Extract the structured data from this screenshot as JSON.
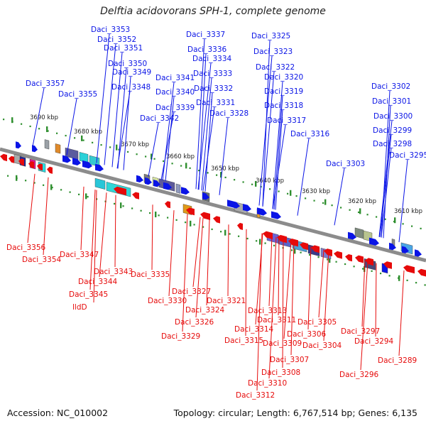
{
  "title": "Delftia acidovorans SPH-1, complete genome",
  "footer": {
    "accession": "Accession: NC_010002",
    "topology": "Topology: circular; Length: 6,767,514 bp; Genes: 6,135"
  },
  "colors": {
    "forward": "#0a14e6",
    "reverse": "#e60a0a",
    "backbone": "#8c8c8c",
    "tick": "#2f8f2f"
  },
  "scale_labels": [
    "3690 kbp",
    "3680 kbp",
    "3670 kbp",
    "3660 kbp",
    "3650 kbp",
    "3640 kbp",
    "3630 kbp",
    "3620 kbp",
    "3610 kbp"
  ],
  "top_labels": [
    "Daci_3353",
    "Daci_3352",
    "Daci_3351",
    "Daci_3350",
    "Daci_3349",
    "Daci_3348",
    "Daci_3357",
    "Daci_3355",
    "Daci_3337",
    "Daci_3336",
    "Daci_3334",
    "Daci_3341",
    "Daci_3333",
    "Daci_3340",
    "Daci_3332",
    "Daci_3339",
    "Daci_3331",
    "Daci_3342",
    "Daci_3328",
    "Daci_3325",
    "Daci_3323",
    "Daci_3322",
    "Daci_3320",
    "Daci_3319",
    "Daci_3318",
    "Daci_3317",
    "Daci_3316",
    "Daci_3303",
    "Daci_3302",
    "Daci_3301",
    "Daci_3300",
    "Daci_3299",
    "Daci_3298",
    "Daci_3295"
  ],
  "bottom_labels": [
    "Daci_3356",
    "Daci_3354",
    "Daci_3347",
    "Daci_3343",
    "Daci_3344",
    "Daci_3345",
    "lldD",
    "Daci_3335",
    "Daci_3327",
    "Daci_3330",
    "Daci_3324",
    "Daci_3321",
    "Daci_3326",
    "Daci_3329",
    "Daci_3313",
    "Daci_3311",
    "Daci_3314",
    "Daci_3305",
    "Daci_3306",
    "Daci_3315",
    "Daci_3309",
    "Daci_3304",
    "Daci_3307",
    "Daci_3308",
    "Daci_3310",
    "Daci_3312",
    "Daci_3297",
    "Daci_3294",
    "Daci_3296",
    "Daci_3289"
  ]
}
